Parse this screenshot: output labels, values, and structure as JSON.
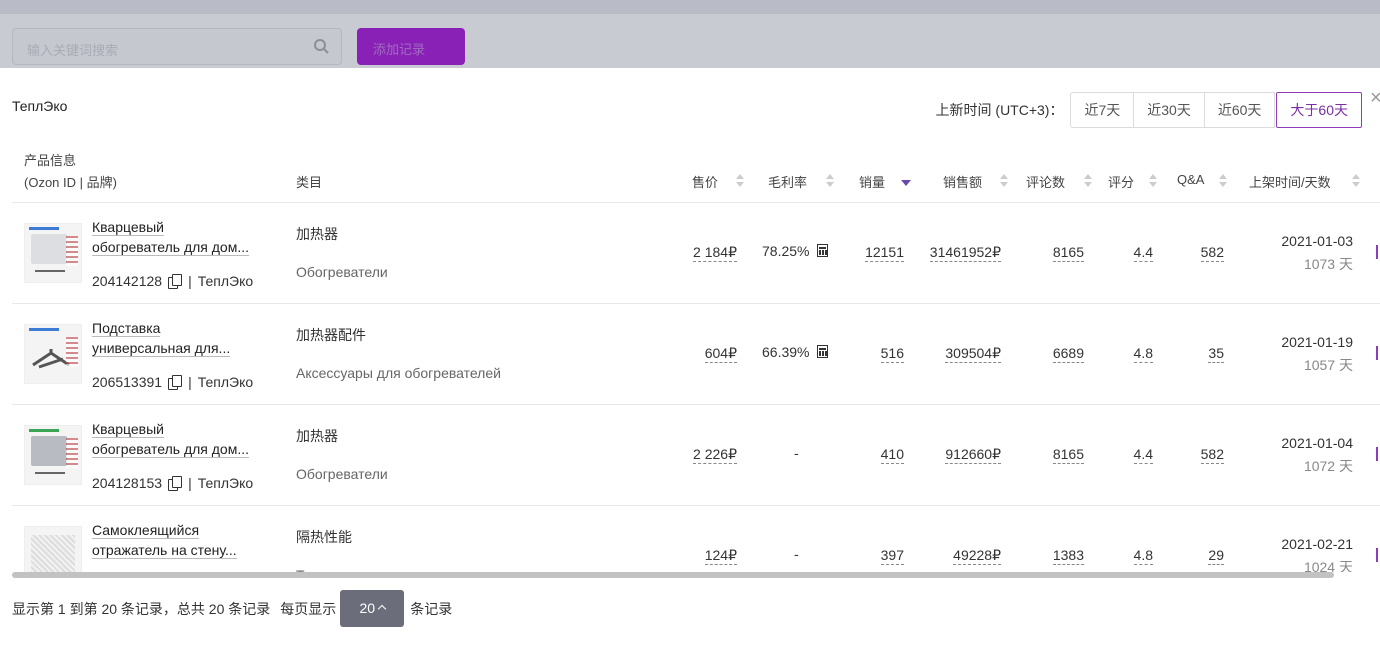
{
  "background": {
    "search_placeholder": "输入关键词搜索",
    "button_label": "添加记录"
  },
  "modal": {
    "title": "ТеплЭко",
    "time_filter": {
      "label": "上新时间 (UTC+3)：",
      "options": [
        "近7天",
        "近30天",
        "近60天",
        "大于60天"
      ],
      "selected": "大于60天"
    },
    "columns": {
      "product_info": "产品信息",
      "product_sub": "(Ozon ID | 品牌)",
      "category": "类目",
      "price": "售价",
      "margin": "毛利率",
      "sales": "销量",
      "revenue": "销售额",
      "reviews": "评论数",
      "rating": "评分",
      "qa": "Q&A",
      "listed": "上架时间/天数"
    },
    "rows": [
      {
        "name_line1": "Кварцевый",
        "name_line2": "обогреватель для дом...",
        "ozon_id": "204142128",
        "brand": "ТеплЭко",
        "cat_cn": "加热器",
        "cat_ru": "Обогреватели",
        "price": "2 184₽",
        "margin": "78.25%",
        "sales": "12151",
        "revenue": "31461952₽",
        "reviews": "8165",
        "rating": "4.4",
        "qa": "582",
        "date": "2021-01-03",
        "days": "1073 天"
      },
      {
        "name_line1": "Подставка",
        "name_line2": "универсальная для...",
        "ozon_id": "206513391",
        "brand": "ТеплЭко",
        "cat_cn": "加热器配件",
        "cat_ru": "Аксессуары для обогревателей",
        "price": "604₽",
        "margin": "66.39%",
        "sales": "516",
        "revenue": "309504₽",
        "reviews": "6689",
        "rating": "4.8",
        "qa": "35",
        "date": "2021-01-19",
        "days": "1057 天"
      },
      {
        "name_line1": "Кварцевый",
        "name_line2": "обогреватель для дом...",
        "ozon_id": "204128153",
        "brand": "ТеплЭко",
        "cat_cn": "加热器",
        "cat_ru": "Обогреватели",
        "price": "2 226₽",
        "margin": "-",
        "sales": "410",
        "revenue": "912660₽",
        "reviews": "8165",
        "rating": "4.4",
        "qa": "582",
        "date": "2021-01-04",
        "days": "1072 天"
      },
      {
        "name_line1": "Самоклеящийся",
        "name_line2": "отражатель на стену...",
        "ozon_id": "",
        "brand": "",
        "cat_cn": "隔热性能",
        "cat_ru": "Т",
        "price": "124₽",
        "margin": "-",
        "sales": "397",
        "revenue": "49228₽",
        "reviews": "1383",
        "rating": "4.8",
        "qa": "29",
        "date": "2021-02-21",
        "days": "1024 天"
      }
    ],
    "pagination": {
      "summary": "显示第 1 到第 20 条记录，总共 20 条记录",
      "per_page_label": "每页显示",
      "page_size": "20",
      "suffix": "条记录"
    }
  }
}
